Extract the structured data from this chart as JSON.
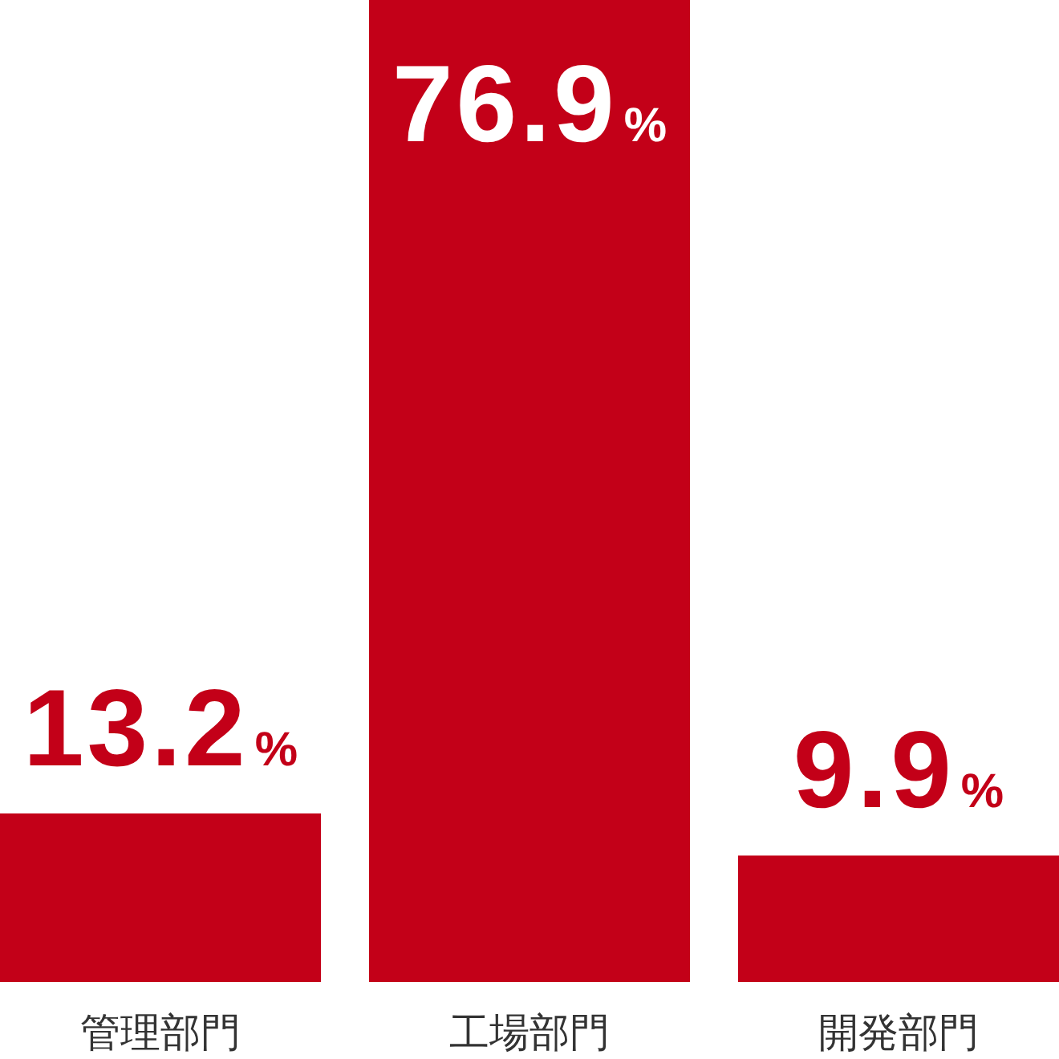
{
  "chart_data": {
    "type": "bar",
    "categories": [
      "管理部門",
      "工場部門",
      "開発部門"
    ],
    "values": [
      13.2,
      76.9,
      9.9
    ],
    "value_labels": [
      "13.2%",
      "76.9%",
      "9.9%"
    ],
    "color": "#c30018"
  }
}
